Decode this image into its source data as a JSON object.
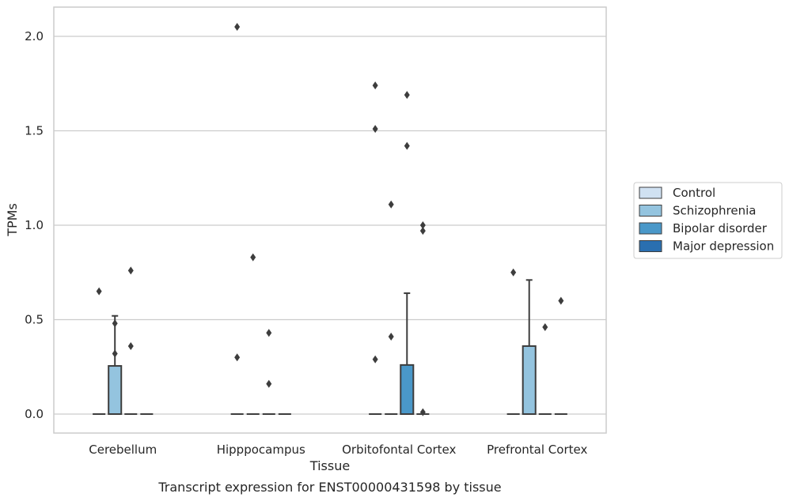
{
  "chart_data": {
    "type": "box",
    "caption": "Transcript expression for ENST00000431598 by tissue",
    "xlabel": "Tissue",
    "ylabel": "TPMs",
    "ylim": [
      -0.1,
      2.15
    ],
    "yticks": [
      0.0,
      0.5,
      1.0,
      1.5,
      2.0
    ],
    "ytick_labels": [
      "0.0",
      "0.5",
      "1.0",
      "1.5",
      "2.0"
    ],
    "grid": "horizontal",
    "legend_position": "right",
    "categories": [
      "Cerebellum",
      "Hipppocampus",
      "Orbitofontal Cortex",
      "Prefrontal Cortex"
    ],
    "series": [
      {
        "name": "Control",
        "color": "#d0e1f2",
        "boxes": [
          {
            "q1": 0,
            "median": 0,
            "q3": 0,
            "whisker_low": 0,
            "whisker_high": 0,
            "outliers": [
              0.65
            ]
          },
          {
            "q1": 0,
            "median": 0,
            "q3": 0,
            "whisker_low": 0,
            "whisker_high": 0,
            "outliers": [
              2.05,
              0.3
            ]
          },
          {
            "q1": 0,
            "median": 0,
            "q3": 0,
            "whisker_low": 0,
            "whisker_high": 0,
            "outliers": [
              1.74,
              1.51,
              0.29
            ]
          },
          {
            "q1": 0,
            "median": 0,
            "q3": 0,
            "whisker_low": 0,
            "whisker_high": 0,
            "outliers": [
              0.75
            ]
          }
        ]
      },
      {
        "name": "Schizophrenia",
        "color": "#94c4df",
        "boxes": [
          {
            "q1": 0,
            "median": 0,
            "q3": 0.255,
            "whisker_low": 0,
            "whisker_high": 0.52,
            "outliers": [
              0.48,
              0.32
            ]
          },
          {
            "q1": 0,
            "median": 0,
            "q3": 0,
            "whisker_low": 0,
            "whisker_high": 0,
            "outliers": [
              0.83
            ]
          },
          {
            "q1": 0,
            "median": 0,
            "q3": 0,
            "whisker_low": 0,
            "whisker_high": 0,
            "outliers": [
              1.11,
              0.41
            ]
          },
          {
            "q1": 0,
            "median": 0,
            "q3": 0.36,
            "whisker_low": 0,
            "whisker_high": 0.71,
            "outliers": []
          }
        ]
      },
      {
        "name": "Bipolar disorder",
        "color": "#4a98c9",
        "boxes": [
          {
            "q1": 0,
            "median": 0,
            "q3": 0,
            "whisker_low": 0,
            "whisker_high": 0,
            "outliers": [
              0.76,
              0.36
            ]
          },
          {
            "q1": 0,
            "median": 0,
            "q3": 0,
            "whisker_low": 0,
            "whisker_high": 0,
            "outliers": [
              0.43,
              0.16
            ]
          },
          {
            "q1": 0,
            "median": 0,
            "q3": 0.26,
            "whisker_low": 0,
            "whisker_high": 0.64,
            "outliers": [
              1.69,
              1.42
            ]
          },
          {
            "q1": 0,
            "median": 0,
            "q3": 0,
            "whisker_low": 0,
            "whisker_high": 0,
            "outliers": [
              0.46
            ]
          }
        ]
      },
      {
        "name": "Major depression",
        "color": "#2a6fb0",
        "boxes": [
          {
            "q1": 0,
            "median": 0,
            "q3": 0,
            "whisker_low": 0,
            "whisker_high": 0,
            "outliers": []
          },
          {
            "q1": 0,
            "median": 0,
            "q3": 0,
            "whisker_low": 0,
            "whisker_high": 0,
            "outliers": []
          },
          {
            "q1": 0,
            "median": 0,
            "q3": 0,
            "whisker_low": 0,
            "whisker_high": 0,
            "outliers": [
              1.0,
              0.97,
              0.01
            ]
          },
          {
            "q1": 0,
            "median": 0,
            "q3": 0,
            "whisker_low": 0,
            "whisker_high": 0,
            "outliers": [
              0.6
            ]
          }
        ]
      }
    ]
  }
}
